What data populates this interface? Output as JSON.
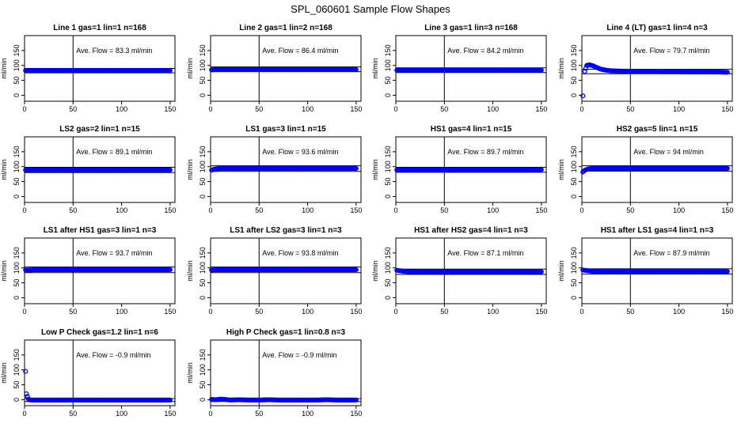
{
  "figure": {
    "title": "SPL_060601  Sample Flow Shapes"
  },
  "chart_data": [
    {
      "type": "scatter",
      "title": "Line 1 gas=1 lin=1 n=168",
      "ylabel": "ml/min",
      "annotation": "Ave. Flow =  83.3  ml/min",
      "xlim": [
        0,
        155
      ],
      "ylim": [
        -20,
        200
      ],
      "xticks": [
        0,
        50,
        100,
        150
      ],
      "yticks": [
        0,
        50,
        100,
        150
      ],
      "vline": 50,
      "hlines": [
        90,
        75
      ],
      "marker_color": "#0000ff",
      "points": [
        [
          1,
          83
        ],
        [
          5,
          83
        ],
        [
          10,
          83
        ],
        [
          20,
          83
        ],
        [
          30,
          83
        ],
        [
          40,
          83
        ],
        [
          50,
          83
        ],
        [
          60,
          83
        ],
        [
          70,
          83
        ],
        [
          80,
          83
        ],
        [
          90,
          83
        ],
        [
          100,
          83
        ],
        [
          110,
          83
        ],
        [
          120,
          83
        ],
        [
          130,
          83
        ],
        [
          140,
          83
        ],
        [
          150,
          83
        ]
      ]
    },
    {
      "type": "scatter",
      "title": "Line 2 gas=1 lin=2 n=168",
      "ylabel": "ml/min",
      "annotation": "Ave. Flow =  86.4  ml/min",
      "xlim": [
        0,
        155
      ],
      "ylim": [
        -20,
        200
      ],
      "xticks": [
        0,
        50,
        100,
        150
      ],
      "yticks": [
        0,
        50,
        100,
        150
      ],
      "vline": 50,
      "hlines": [
        95,
        79
      ],
      "marker_color": "#0000ff",
      "points": [
        [
          1,
          85
        ],
        [
          5,
          86
        ],
        [
          10,
          86
        ],
        [
          20,
          86
        ],
        [
          30,
          86
        ],
        [
          40,
          86
        ],
        [
          50,
          86
        ],
        [
          60,
          86
        ],
        [
          70,
          86
        ],
        [
          80,
          86
        ],
        [
          90,
          86
        ],
        [
          100,
          86
        ],
        [
          110,
          86
        ],
        [
          120,
          86
        ],
        [
          130,
          86
        ],
        [
          140,
          86
        ],
        [
          150,
          86
        ]
      ]
    },
    {
      "type": "scatter",
      "title": "Line 3 gas=1 lin=3 n=168",
      "ylabel": "ml/min",
      "annotation": "Ave. Flow =  84.2  ml/min",
      "xlim": [
        0,
        155
      ],
      "ylim": [
        -20,
        200
      ],
      "xticks": [
        0,
        50,
        100,
        150
      ],
      "yticks": [
        0,
        50,
        100,
        150
      ],
      "vline": 50,
      "hlines": [
        92,
        76
      ],
      "marker_color": "#0000ff",
      "points": [
        [
          1,
          84
        ],
        [
          5,
          84
        ],
        [
          10,
          84
        ],
        [
          20,
          84
        ],
        [
          30,
          84
        ],
        [
          40,
          84
        ],
        [
          50,
          84
        ],
        [
          60,
          84
        ],
        [
          70,
          84
        ],
        [
          80,
          84
        ],
        [
          90,
          84
        ],
        [
          100,
          84
        ],
        [
          110,
          84
        ],
        [
          120,
          84
        ],
        [
          130,
          84
        ],
        [
          140,
          84
        ],
        [
          150,
          84
        ]
      ]
    },
    {
      "type": "scatter",
      "title": "Line 4 (LT) gas=1 lin=4 n=3",
      "ylabel": "ml/min",
      "annotation": "Ave. Flow =  79.7  ml/min",
      "xlim": [
        0,
        155
      ],
      "ylim": [
        -20,
        200
      ],
      "xticks": [
        0,
        50,
        100,
        150
      ],
      "yticks": [
        0,
        50,
        100,
        150
      ],
      "vline": 50,
      "hlines": [
        87,
        72
      ],
      "marker_color": "#0000ff",
      "points": [
        [
          1,
          -2
        ],
        [
          3,
          80
        ],
        [
          5,
          100
        ],
        [
          8,
          102
        ],
        [
          12,
          98
        ],
        [
          16,
          92
        ],
        [
          20,
          87
        ],
        [
          25,
          84
        ],
        [
          30,
          82
        ],
        [
          40,
          81
        ],
        [
          50,
          80
        ],
        [
          60,
          80
        ],
        [
          70,
          80
        ],
        [
          80,
          79
        ],
        [
          90,
          79
        ],
        [
          100,
          79
        ],
        [
          110,
          78
        ],
        [
          120,
          78
        ],
        [
          130,
          78
        ],
        [
          140,
          78
        ],
        [
          150,
          77
        ]
      ]
    },
    {
      "type": "scatter",
      "title": "LS2 gas=2 lin=1 n=15",
      "ylabel": "ml/min",
      "annotation": "Ave. Flow =  89.1  ml/min",
      "xlim": [
        0,
        155
      ],
      "ylim": [
        -20,
        200
      ],
      "xticks": [
        0,
        50,
        100,
        150
      ],
      "yticks": [
        0,
        50,
        100,
        150
      ],
      "vline": 50,
      "hlines": [
        98,
        80
      ],
      "marker_color": "#0000ff",
      "points": [
        [
          1,
          89
        ],
        [
          5,
          89
        ],
        [
          10,
          89
        ],
        [
          20,
          89
        ],
        [
          30,
          89
        ],
        [
          40,
          89
        ],
        [
          50,
          89
        ],
        [
          60,
          89
        ],
        [
          70,
          89
        ],
        [
          80,
          89
        ],
        [
          90,
          89
        ],
        [
          100,
          89
        ],
        [
          110,
          89
        ],
        [
          120,
          89
        ],
        [
          130,
          89
        ],
        [
          140,
          89
        ],
        [
          150,
          89
        ]
      ]
    },
    {
      "type": "scatter",
      "title": "LS1 gas=3 lin=1 n=15",
      "ylabel": "ml/min",
      "annotation": "Ave. Flow =  93.6  ml/min",
      "xlim": [
        0,
        155
      ],
      "ylim": [
        -20,
        200
      ],
      "xticks": [
        0,
        50,
        100,
        150
      ],
      "yticks": [
        0,
        50,
        100,
        150
      ],
      "vline": 50,
      "hlines": [
        103,
        84
      ],
      "marker_color": "#0000ff",
      "points": [
        [
          1,
          88
        ],
        [
          3,
          91
        ],
        [
          6,
          93
        ],
        [
          10,
          94
        ],
        [
          20,
          94
        ],
        [
          30,
          94
        ],
        [
          40,
          94
        ],
        [
          50,
          94
        ],
        [
          60,
          94
        ],
        [
          70,
          94
        ],
        [
          80,
          94
        ],
        [
          90,
          94
        ],
        [
          100,
          94
        ],
        [
          110,
          94
        ],
        [
          120,
          94
        ],
        [
          130,
          94
        ],
        [
          140,
          94
        ],
        [
          150,
          94
        ]
      ]
    },
    {
      "type": "scatter",
      "title": "HS1 gas=4 lin=1 n=15",
      "ylabel": "ml/min",
      "annotation": "Ave. Flow =  89.7  ml/min",
      "xlim": [
        0,
        155
      ],
      "ylim": [
        -20,
        200
      ],
      "xticks": [
        0,
        50,
        100,
        150
      ],
      "yticks": [
        0,
        50,
        100,
        150
      ],
      "vline": 50,
      "hlines": [
        98,
        81
      ],
      "marker_color": "#0000ff",
      "points": [
        [
          1,
          89
        ],
        [
          5,
          90
        ],
        [
          10,
          90
        ],
        [
          20,
          90
        ],
        [
          30,
          90
        ],
        [
          40,
          90
        ],
        [
          50,
          90
        ],
        [
          60,
          90
        ],
        [
          70,
          90
        ],
        [
          80,
          90
        ],
        [
          90,
          90
        ],
        [
          100,
          90
        ],
        [
          110,
          90
        ],
        [
          120,
          90
        ],
        [
          130,
          90
        ],
        [
          140,
          90
        ],
        [
          150,
          90
        ]
      ]
    },
    {
      "type": "scatter",
      "title": "HS2 gas=5 lin=1 n=15",
      "ylabel": "ml/min",
      "annotation": "Ave. Flow =  94  ml/min",
      "xlim": [
        0,
        155
      ],
      "ylim": [
        -20,
        200
      ],
      "xticks": [
        0,
        50,
        100,
        150
      ],
      "yticks": [
        0,
        50,
        100,
        150
      ],
      "vline": 50,
      "hlines": [
        103,
        85
      ],
      "marker_color": "#0000ff",
      "points": [
        [
          1,
          82
        ],
        [
          3,
          88
        ],
        [
          6,
          92
        ],
        [
          10,
          94
        ],
        [
          20,
          94
        ],
        [
          30,
          94
        ],
        [
          40,
          94
        ],
        [
          50,
          94
        ],
        [
          60,
          94
        ],
        [
          70,
          94
        ],
        [
          80,
          94
        ],
        [
          90,
          94
        ],
        [
          100,
          94
        ],
        [
          110,
          94
        ],
        [
          120,
          94
        ],
        [
          130,
          94
        ],
        [
          140,
          94
        ],
        [
          150,
          94
        ]
      ]
    },
    {
      "type": "scatter",
      "title": "LS1 after HS1 gas=3 lin=1 n=3",
      "ylabel": "ml/min",
      "annotation": "Ave. Flow =  93.7  ml/min",
      "xlim": [
        0,
        155
      ],
      "ylim": [
        -20,
        200
      ],
      "xticks": [
        0,
        50,
        100,
        150
      ],
      "yticks": [
        0,
        50,
        100,
        150
      ],
      "vline": 50,
      "hlines": [
        103,
        84
      ],
      "marker_color": "#0000ff",
      "points": [
        [
          1,
          93
        ],
        [
          5,
          93
        ],
        [
          10,
          94
        ],
        [
          20,
          94
        ],
        [
          30,
          94
        ],
        [
          40,
          94
        ],
        [
          50,
          94
        ],
        [
          60,
          94
        ],
        [
          70,
          94
        ],
        [
          80,
          94
        ],
        [
          90,
          94
        ],
        [
          100,
          94
        ],
        [
          110,
          94
        ],
        [
          120,
          94
        ],
        [
          130,
          94
        ],
        [
          140,
          94
        ],
        [
          150,
          94
        ]
      ]
    },
    {
      "type": "scatter",
      "title": "LS1 after LS2 gas=3 lin=1 n=3",
      "ylabel": "ml/min",
      "annotation": "Ave. Flow =  93.8  ml/min",
      "xlim": [
        0,
        155
      ],
      "ylim": [
        -20,
        200
      ],
      "xticks": [
        0,
        50,
        100,
        150
      ],
      "yticks": [
        0,
        50,
        100,
        150
      ],
      "vline": 50,
      "hlines": [
        103,
        84
      ],
      "marker_color": "#0000ff",
      "points": [
        [
          1,
          93
        ],
        [
          5,
          94
        ],
        [
          10,
          94
        ],
        [
          20,
          94
        ],
        [
          30,
          94
        ],
        [
          40,
          94
        ],
        [
          50,
          94
        ],
        [
          60,
          94
        ],
        [
          70,
          94
        ],
        [
          80,
          94
        ],
        [
          90,
          94
        ],
        [
          100,
          94
        ],
        [
          110,
          94
        ],
        [
          120,
          94
        ],
        [
          130,
          94
        ],
        [
          140,
          94
        ],
        [
          150,
          94
        ]
      ]
    },
    {
      "type": "scatter",
      "title": "HS1 after HS2 gas=4 lin=1 n=3",
      "ylabel": "ml/min",
      "annotation": "Ave. Flow =  87.1  ml/min",
      "xlim": [
        0,
        155
      ],
      "ylim": [
        -20,
        200
      ],
      "xticks": [
        0,
        50,
        100,
        150
      ],
      "yticks": [
        0,
        50,
        100,
        150
      ],
      "vline": 50,
      "hlines": [
        96,
        78
      ],
      "marker_color": "#0000ff",
      "points": [
        [
          1,
          92
        ],
        [
          5,
          90
        ],
        [
          10,
          88
        ],
        [
          20,
          87
        ],
        [
          30,
          87
        ],
        [
          40,
          87
        ],
        [
          50,
          87
        ],
        [
          60,
          87
        ],
        [
          70,
          87
        ],
        [
          80,
          87
        ],
        [
          90,
          87
        ],
        [
          100,
          87
        ],
        [
          110,
          87
        ],
        [
          120,
          87
        ],
        [
          130,
          87
        ],
        [
          140,
          87
        ],
        [
          150,
          87
        ]
      ]
    },
    {
      "type": "scatter",
      "title": "HS1 after LS1 gas=4 lin=1 n=3",
      "ylabel": "ml/min",
      "annotation": "Ave. Flow =  87.9  ml/min",
      "xlim": [
        0,
        155
      ],
      "ylim": [
        -20,
        200
      ],
      "xticks": [
        0,
        50,
        100,
        150
      ],
      "yticks": [
        0,
        50,
        100,
        150
      ],
      "vline": 50,
      "hlines": [
        97,
        79
      ],
      "marker_color": "#0000ff",
      "points": [
        [
          1,
          93
        ],
        [
          5,
          91
        ],
        [
          10,
          89
        ],
        [
          20,
          88
        ],
        [
          30,
          88
        ],
        [
          40,
          88
        ],
        [
          50,
          88
        ],
        [
          60,
          88
        ],
        [
          70,
          88
        ],
        [
          80,
          88
        ],
        [
          90,
          88
        ],
        [
          100,
          88
        ],
        [
          110,
          88
        ],
        [
          120,
          88
        ],
        [
          130,
          88
        ],
        [
          140,
          88
        ],
        [
          150,
          88
        ]
      ]
    },
    {
      "type": "scatter",
      "title": "Low P Check gas=1.2 lin=1 n=6",
      "ylabel": "ml/min",
      "annotation": "Ave. Flow =  -0.9  ml/min",
      "xlim": [
        0,
        155
      ],
      "ylim": [
        -20,
        200
      ],
      "xticks": [
        0,
        50,
        100,
        150
      ],
      "yticks": [
        0,
        50,
        100,
        150
      ],
      "vline": 50,
      "hlines": [
        4,
        -6
      ],
      "marker_color": "#0000ff",
      "points": [
        [
          1,
          95
        ],
        [
          2,
          20
        ],
        [
          4,
          2
        ],
        [
          6,
          -1
        ],
        [
          10,
          -1
        ],
        [
          20,
          -1
        ],
        [
          30,
          -1
        ],
        [
          40,
          -1
        ],
        [
          50,
          -1
        ],
        [
          60,
          -1
        ],
        [
          70,
          -1
        ],
        [
          80,
          -1
        ],
        [
          90,
          -1
        ],
        [
          100,
          -1
        ],
        [
          110,
          -1
        ],
        [
          120,
          -1
        ],
        [
          130,
          -1
        ],
        [
          140,
          -1
        ],
        [
          150,
          -1
        ]
      ]
    },
    {
      "type": "scatter",
      "title": "High P Check gas=1 lin=0.8 n=3",
      "ylabel": "ml/min",
      "annotation": "Ave. Flow =  -0.9  ml/min",
      "xlim": [
        0,
        155
      ],
      "ylim": [
        -20,
        200
      ],
      "xticks": [
        0,
        50,
        100,
        150
      ],
      "yticks": [
        0,
        50,
        100,
        150
      ],
      "vline": 50,
      "hlines": [
        4,
        -6
      ],
      "marker_color": "#0000ff",
      "points": [
        [
          1,
          1
        ],
        [
          5,
          0
        ],
        [
          10,
          2
        ],
        [
          15,
          1
        ],
        [
          20,
          -1
        ],
        [
          30,
          0
        ],
        [
          40,
          -1
        ],
        [
          50,
          -1
        ],
        [
          60,
          0
        ],
        [
          70,
          -1
        ],
        [
          80,
          -1
        ],
        [
          90,
          -1
        ],
        [
          100,
          -1
        ],
        [
          110,
          -1
        ],
        [
          120,
          0
        ],
        [
          130,
          -1
        ],
        [
          140,
          -1
        ],
        [
          150,
          -1
        ]
      ]
    }
  ]
}
